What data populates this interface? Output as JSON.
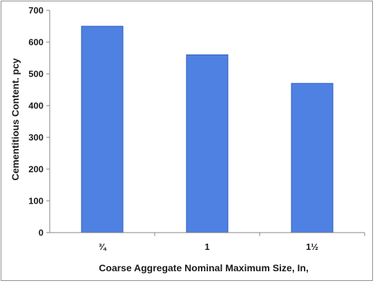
{
  "chart_data": {
    "type": "bar",
    "categories": [
      "¾",
      "1",
      "1½"
    ],
    "values": [
      650,
      560,
      470
    ],
    "title": "",
    "xlabel": "Coarse Aggregate Nominal Maximum Size, In,",
    "ylabel": "Cementitious Content. pcy",
    "ylim": [
      0,
      700
    ],
    "yticks": [
      0,
      100,
      200,
      300,
      400,
      500,
      600,
      700
    ],
    "grid": false,
    "legend": "none",
    "bar_color": "#4f81e3",
    "bar_edge_color": "#2e5cb8"
  }
}
